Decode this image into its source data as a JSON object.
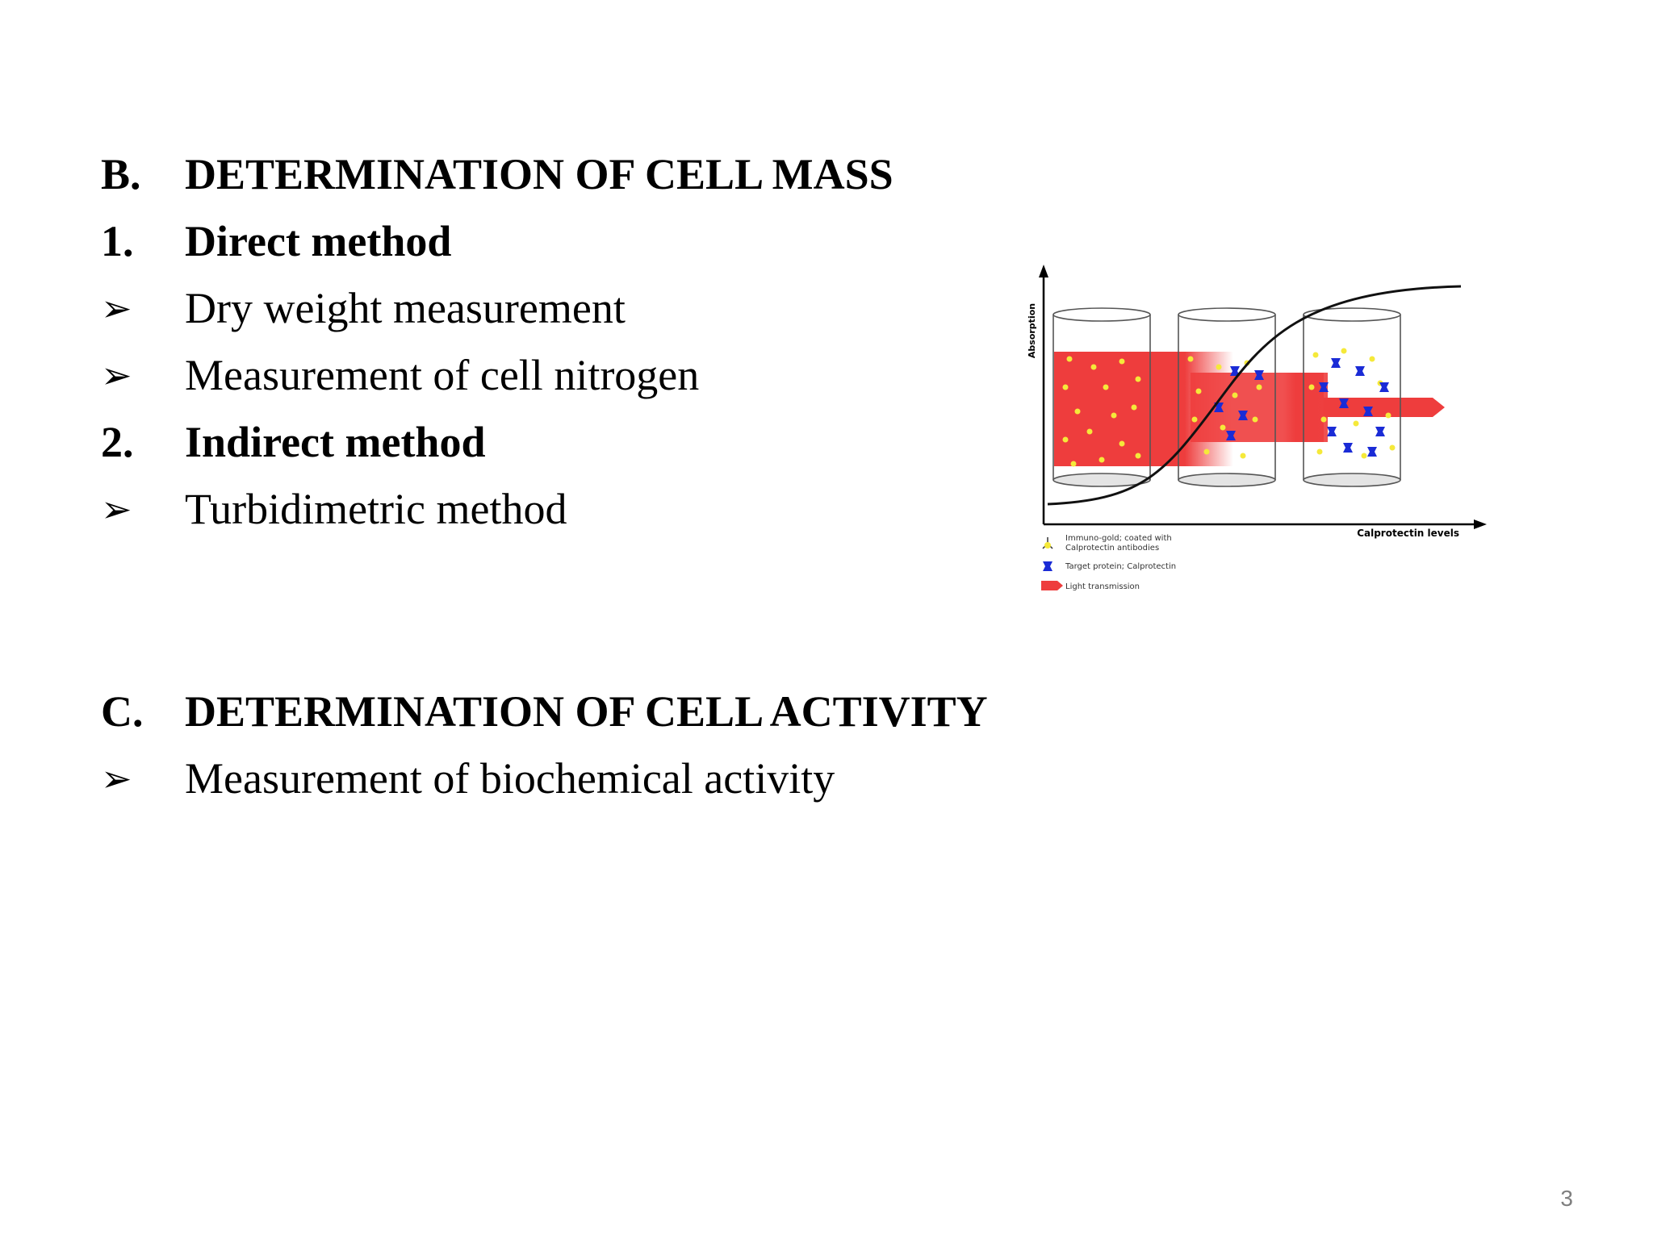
{
  "section_b": {
    "marker": "B.",
    "title": "DETERMINATION OF CELL MASS"
  },
  "direct": {
    "marker": "1.",
    "title": "Direct method",
    "items": [
      "Dry weight measurement",
      "Measurement of cell nitrogen"
    ]
  },
  "indirect": {
    "marker": "2.",
    "title": "Indirect method",
    "items": [
      "Turbidimetric method"
    ]
  },
  "section_c": {
    "marker": "C.",
    "title": "DETERMINATION OF CELL ACTIVITY",
    "items": [
      "Measurement of biochemical activity"
    ]
  },
  "bullet_symbol": "➢",
  "figure": {
    "y_axis_label": "Absorption",
    "x_axis_label": "Calprotectin levels",
    "legend": [
      {
        "icon": "immuno-gold-icon",
        "text_line1": "Immuno-gold; coated with",
        "text_line2": "Calprotectin antibodies"
      },
      {
        "icon": "target-protein-icon",
        "text_line1": "Target protein; Calprotectin",
        "text_line2": ""
      },
      {
        "icon": "light-arrow-icon",
        "text_line1": "Light transmission",
        "text_line2": ""
      }
    ],
    "colors": {
      "beam": "#ee3d3d",
      "gold": "#f5e93a",
      "protein": "#1a2bd6",
      "curve": "#111111"
    }
  },
  "page_number": "3"
}
